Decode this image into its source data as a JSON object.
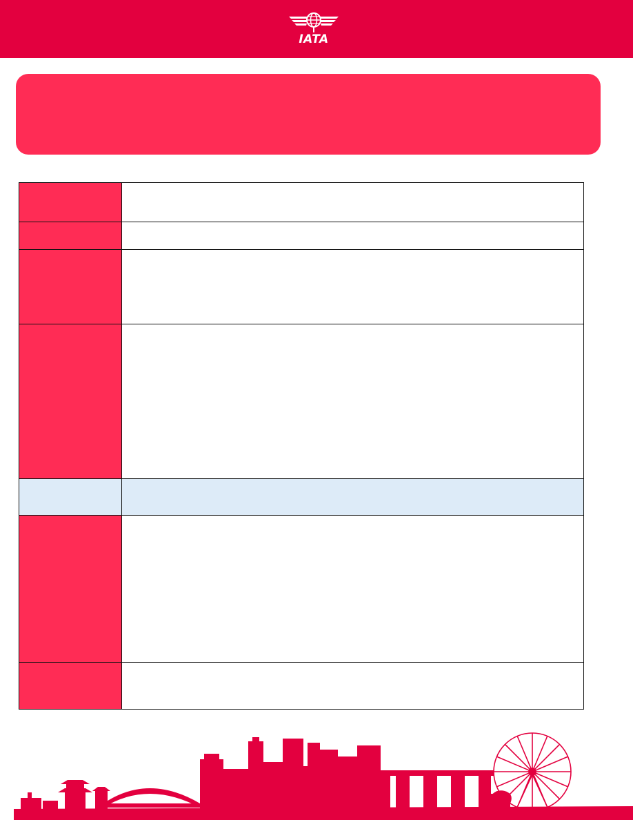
{
  "header": {
    "logo_text": "IATA",
    "logo_icon": "iata-globe-wings-icon",
    "brand_color": "#e3003f"
  },
  "banner": {
    "color": "#ff2c55"
  },
  "table": {
    "rows": [
      {
        "label": "",
        "value": ""
      },
      {
        "label": "",
        "value": ""
      },
      {
        "label": "",
        "value": ""
      },
      {
        "label": "",
        "value": ""
      },
      {
        "label": "",
        "value": ""
      },
      {
        "label": "",
        "value": ""
      },
      {
        "label": "",
        "value": ""
      }
    ],
    "label_color": "#ff2c55",
    "highlight_color": "#ddebf8"
  },
  "footer": {
    "illustration": "singapore-skyline-illustration",
    "color": "#e3003f"
  }
}
